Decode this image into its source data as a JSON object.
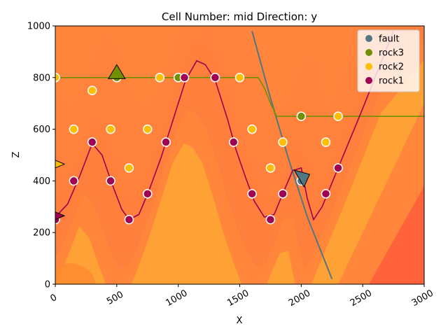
{
  "chart_data": {
    "type": "scatter",
    "title": "Cell Number: mid Direction: y",
    "xlabel": "X",
    "ylabel": "Z",
    "xlim": [
      0,
      3000
    ],
    "ylim": [
      0,
      1000
    ],
    "x_ticks": [
      0,
      500,
      1000,
      1500,
      2000,
      2500,
      3000
    ],
    "y_ticks": [
      0,
      200,
      400,
      600,
      800,
      1000
    ],
    "grid": false,
    "legend_position": "top-right",
    "legend": [
      {
        "name": "fault",
        "color": "#527682"
      },
      {
        "name": "rock3",
        "color": "#728f02"
      },
      {
        "name": "rock2",
        "color": "#ffbe00"
      },
      {
        "name": "rock1",
        "color": "#9f0052"
      }
    ],
    "series": [
      {
        "name": "fault",
        "color": "#527682",
        "points": [
          [
            2000,
            400
          ]
        ]
      },
      {
        "name": "rock3",
        "color": "#728f02",
        "points": [
          [
            0,
            800
          ],
          [
            500,
            800
          ],
          [
            1000,
            800
          ],
          [
            2000,
            650
          ]
        ]
      },
      {
        "name": "rock2",
        "color": "#ffbe00",
        "points": [
          [
            0,
            800
          ],
          [
            300,
            750
          ],
          [
            850,
            800
          ],
          [
            1500,
            800
          ],
          [
            2300,
            650
          ],
          [
            150,
            600
          ],
          [
            450,
            600
          ],
          [
            750,
            600
          ],
          [
            1600,
            600
          ],
          [
            1850,
            550
          ],
          [
            2200,
            550
          ],
          [
            600,
            450
          ],
          [
            1750,
            450
          ]
        ]
      },
      {
        "name": "rock1",
        "color": "#9f0052",
        "points": [
          [
            1050,
            800
          ],
          [
            1300,
            800
          ],
          [
            300,
            550
          ],
          [
            900,
            550
          ],
          [
            1450,
            550
          ],
          [
            150,
            400
          ],
          [
            450,
            400
          ],
          [
            2300,
            450
          ],
          [
            750,
            350
          ],
          [
            1600,
            350
          ],
          [
            1850,
            350
          ],
          [
            2200,
            350
          ],
          [
            0,
            250
          ],
          [
            600,
            250
          ],
          [
            1750,
            250
          ]
        ]
      }
    ],
    "orientations": [
      {
        "series": "rock3",
        "x": 500,
        "z": 820,
        "shape": "up-triangle"
      },
      {
        "series": "fault",
        "x": 2000,
        "z": 420,
        "shape": "down-triangle"
      },
      {
        "series": "rock2",
        "x": 0,
        "z": 465,
        "shape": "right-triangle"
      },
      {
        "series": "rock1",
        "x": 0,
        "z": 265,
        "shape": "right-triangle"
      }
    ],
    "interfaces": {
      "fault": [
        [
          1600,
          980
        ],
        [
          1750,
          720
        ],
        [
          1900,
          480
        ],
        [
          2050,
          260
        ],
        [
          2250,
          20
        ]
      ],
      "rock3": [
        [
          0,
          800
        ],
        [
          1650,
          800
        ],
        [
          1700,
          760
        ],
        [
          1750,
          700
        ],
        [
          1800,
          650
        ],
        [
          3000,
          650
        ]
      ],
      "rock1": [
        [
          0,
          260
        ],
        [
          100,
          310
        ],
        [
          200,
          420
        ],
        [
          300,
          545
        ],
        [
          380,
          500
        ],
        [
          460,
          390
        ],
        [
          540,
          290
        ],
        [
          600,
          250
        ],
        [
          680,
          270
        ],
        [
          760,
          360
        ],
        [
          860,
          490
        ],
        [
          960,
          640
        ],
        [
          1060,
          790
        ],
        [
          1150,
          865
        ],
        [
          1220,
          850
        ],
        [
          1300,
          790
        ],
        [
          1400,
          640
        ],
        [
          1470,
          520
        ],
        [
          1550,
          410
        ],
        [
          1620,
          320
        ],
        [
          1700,
          260
        ],
        [
          1780,
          270
        ],
        [
          1850,
          350
        ],
        [
          1930,
          440
        ],
        [
          2000,
          450
        ],
        [
          2050,
          330
        ],
        [
          2100,
          250
        ],
        [
          2170,
          300
        ],
        [
          2300,
          450
        ],
        [
          2500,
          680
        ],
        [
          2700,
          920
        ],
        [
          2750,
          980
        ]
      ]
    },
    "background_fill": {
      "colors": [
        "#fff133",
        "#ffdd33",
        "#ffcc33",
        "#ffb533",
        "#ffa038",
        "#ff8c3c",
        "#ff6a40"
      ]
    }
  }
}
